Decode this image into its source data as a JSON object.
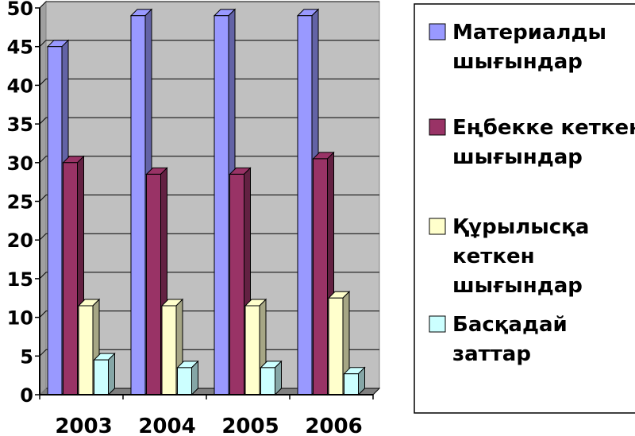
{
  "chart_data": {
    "type": "bar",
    "categories": [
      "2003",
      "2004",
      "2005",
      "2006"
    ],
    "series": [
      {
        "name": "Материалды шығындар",
        "values": [
          45,
          49,
          49,
          49
        ],
        "color": "#9999ff"
      },
      {
        "name": "Еңбекке кеткен шығындар",
        "values": [
          30,
          28.5,
          28.5,
          30.5
        ],
        "color": "#993366"
      },
      {
        "name": "Құрылысқа кеткен шығындар",
        "values": [
          11.5,
          11.5,
          11.5,
          12.5
        ],
        "color": "#ffffcc"
      },
      {
        "name": "Басқадай заттар",
        "values": [
          4.5,
          3.5,
          3.5,
          2.7
        ],
        "color": "#ccffff"
      }
    ],
    "yticks": [
      "0",
      "5",
      "10",
      "15",
      "20",
      "25",
      "30",
      "35",
      "40",
      "45",
      "50"
    ],
    "ylim": [
      0,
      50
    ],
    "grid": true,
    "legend_position": "right",
    "plot_background": "#c0c0c0",
    "legend_lines": [
      [
        "Материалды",
        "шығындар"
      ],
      [
        "Еңбекке кеткен",
        "шығындар"
      ],
      [
        "Құрылысқа",
        "кеткен",
        "шығындар"
      ],
      [
        "Басқадай",
        "заттар"
      ]
    ]
  }
}
